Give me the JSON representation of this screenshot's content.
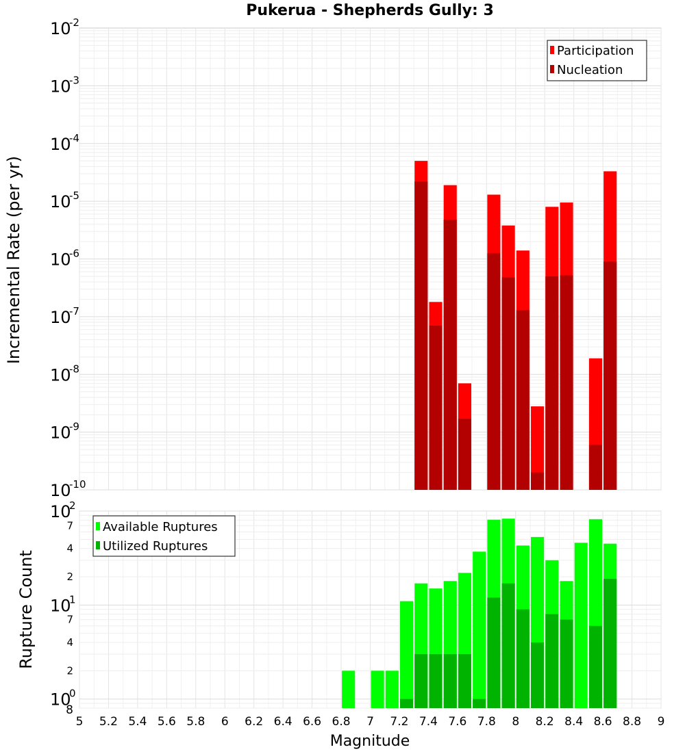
{
  "chart_data": [
    {
      "type": "bar",
      "title": "Pukerua - Shepherds Gully: 3",
      "xlabel": "",
      "ylabel": "Incremental Rate (per yr)",
      "yscale": "log",
      "ylim": [
        1e-10,
        0.01
      ],
      "xlim": [
        5,
        9
      ],
      "grid": true,
      "legend_position": "top-right",
      "bar_width": 0.09,
      "colors": {
        "Participation": "#ff0000",
        "Nucleation": "#b30000"
      },
      "series": [
        {
          "name": "Participation",
          "x": [
            7.35,
            7.45,
            7.55,
            7.65,
            7.85,
            7.95,
            8.05,
            8.15,
            8.25,
            8.35,
            8.55,
            8.65
          ],
          "values": [
            5e-05,
            1.8e-07,
            1.9e-05,
            7e-09,
            1.3e-05,
            3.8e-06,
            1.4e-06,
            2.8e-09,
            8e-06,
            9.5e-06,
            1.9e-08,
            3.3e-05
          ]
        },
        {
          "name": "Nucleation",
          "x": [
            7.35,
            7.45,
            7.55,
            7.65,
            7.85,
            7.95,
            8.05,
            8.15,
            8.25,
            8.35,
            8.55,
            8.65
          ],
          "values": [
            2.2e-05,
            7e-08,
            4.8e-06,
            1.7e-09,
            1.25e-06,
            4.8e-07,
            1.3e-07,
            2e-10,
            5e-07,
            5.2e-07,
            6e-10,
            9e-07
          ]
        }
      ],
      "y_ticks": [
        {
          "base": "10",
          "exp": "-2",
          "value": 0.01
        },
        {
          "base": "10",
          "exp": "-3",
          "value": 0.001
        },
        {
          "base": "10",
          "exp": "-4",
          "value": 0.0001
        },
        {
          "base": "10",
          "exp": "-5",
          "value": 1e-05
        },
        {
          "base": "10",
          "exp": "-6",
          "value": 1e-06
        },
        {
          "base": "10",
          "exp": "-7",
          "value": 1e-07
        },
        {
          "base": "10",
          "exp": "-8",
          "value": 1e-08
        },
        {
          "base": "10",
          "exp": "-9",
          "value": 1e-09
        },
        {
          "base": "10",
          "exp": "-10",
          "value": 1e-10
        }
      ]
    },
    {
      "type": "bar",
      "title": "",
      "xlabel": "Magnitude",
      "ylabel": "Rupture Count",
      "yscale": "log",
      "ylim": [
        0.8,
        100
      ],
      "xlim": [
        5,
        9
      ],
      "grid": true,
      "legend_position": "top-left",
      "bar_width": 0.09,
      "colors": {
        "Available Ruptures": "#00ff00",
        "Utilized Ruptures": "#00b300"
      },
      "series": [
        {
          "name": "Available Ruptures",
          "x": [
            6.85,
            7.05,
            7.15,
            7.25,
            7.35,
            7.45,
            7.55,
            7.65,
            7.75,
            7.85,
            7.95,
            8.05,
            8.15,
            8.25,
            8.35,
            8.45,
            8.55,
            8.65
          ],
          "values": [
            2,
            2,
            2,
            11,
            17,
            15,
            18,
            22,
            37,
            81,
            83,
            43,
            53,
            30,
            18,
            46,
            82,
            45
          ]
        },
        {
          "name": "Utilized Ruptures",
          "x": [
            7.25,
            7.35,
            7.45,
            7.55,
            7.65,
            7.75,
            7.85,
            7.95,
            8.05,
            8.15,
            8.25,
            8.35,
            8.55,
            8.65
          ],
          "values": [
            1,
            3,
            3,
            3,
            3,
            1,
            12,
            17,
            9,
            4,
            8,
            7,
            6,
            19
          ]
        }
      ],
      "y_major_ticks": [
        {
          "base": "10",
          "exp": "2",
          "value": 100
        },
        {
          "base": "10",
          "exp": "1",
          "value": 10
        },
        {
          "base": "10",
          "exp": "0",
          "value": 1
        }
      ],
      "y_minor_ticks": [
        {
          "label": "7",
          "value": 70
        },
        {
          "label": "4",
          "value": 40
        },
        {
          "label": "2",
          "value": 20
        },
        {
          "label": "7",
          "value": 7
        },
        {
          "label": "4",
          "value": 4
        },
        {
          "label": "2",
          "value": 2
        },
        {
          "label": "8",
          "value": 0.8
        }
      ],
      "x_ticks": [
        "5",
        "5.2",
        "5.4",
        "5.6",
        "5.8",
        "6",
        "6.2",
        "6.4",
        "6.6",
        "6.8",
        "7",
        "7.2",
        "7.4",
        "7.6",
        "7.8",
        "8",
        "8.2",
        "8.4",
        "8.6",
        "8.8",
        "9"
      ]
    }
  ]
}
